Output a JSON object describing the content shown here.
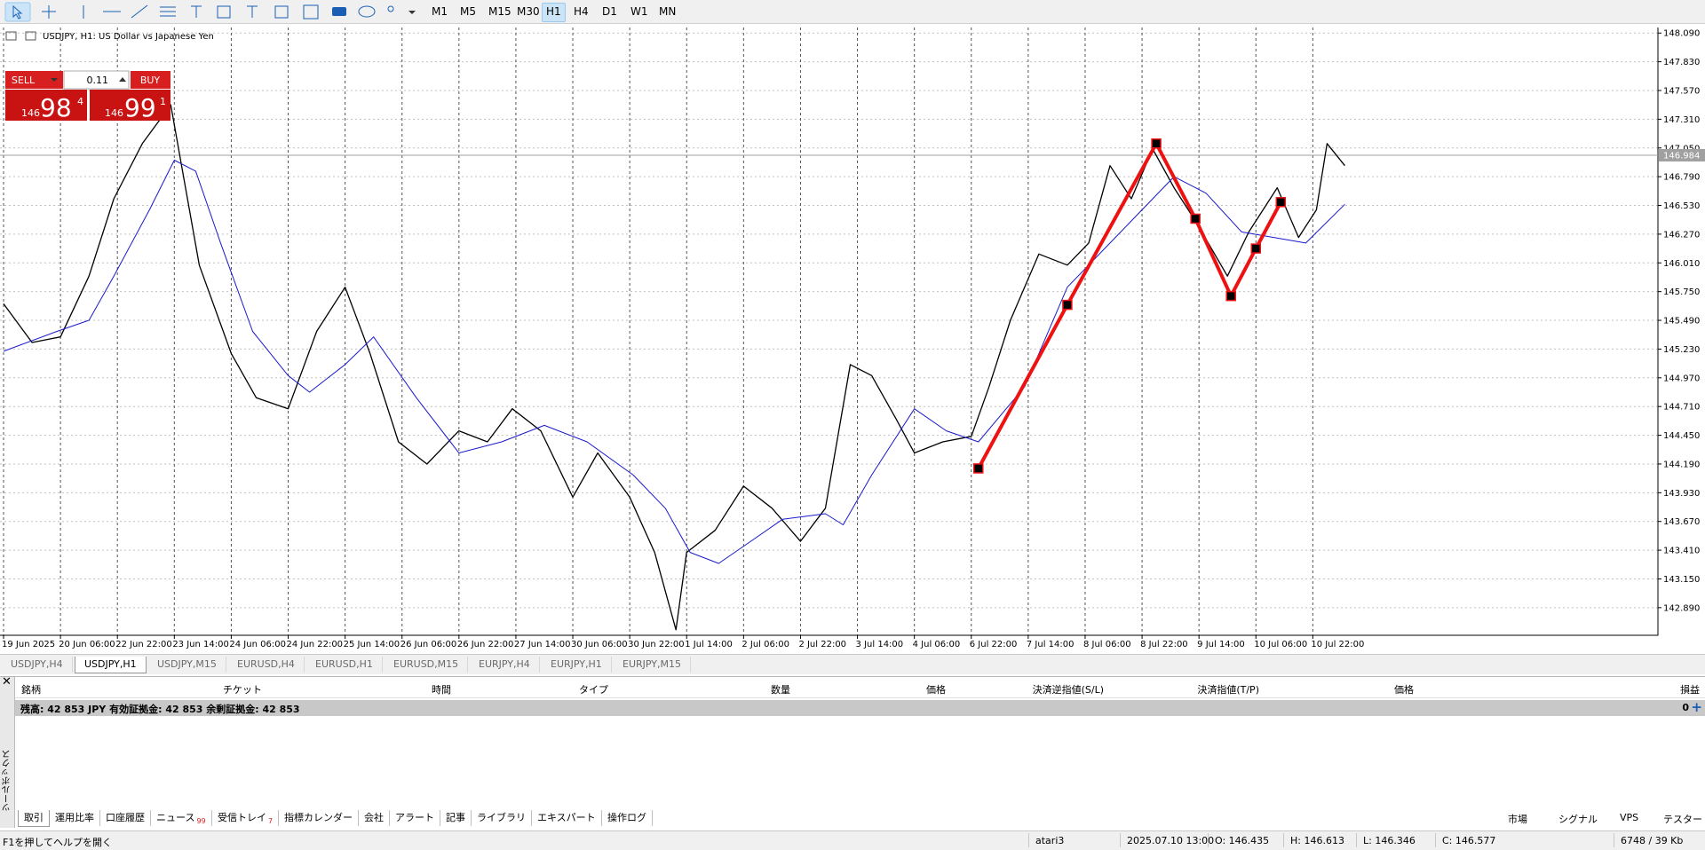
{
  "toolbar": {
    "periods": [
      "M1",
      "M5",
      "M15",
      "M30",
      "H1",
      "H4",
      "D1",
      "W1",
      "MN"
    ],
    "active_period": 4
  },
  "chart_header": "USDJPY, H1:  US Dollar vs Japanese Yen",
  "one_click": {
    "sell": "SELL",
    "buy": "BUY",
    "lot": "0.11",
    "bid": {
      "big": "146",
      "main": "98",
      "small": "4"
    },
    "ask": {
      "big": "146",
      "main": "99",
      "small": "1"
    }
  },
  "chart_data": {
    "type": "line",
    "grid": true,
    "xlim": [
      -1,
      465
    ],
    "xticks": [
      {
        "value": 0,
        "label": "19 Jun 2025"
      },
      {
        "value": 16,
        "label": "20 Jun 06:00"
      },
      {
        "value": 32,
        "label": "22 Jun 22:00"
      },
      {
        "value": 48,
        "label": "23 Jun 14:00"
      },
      {
        "value": 64,
        "label": "24 Jun 06:00"
      },
      {
        "value": 80,
        "label": "24 Jun 22:00"
      },
      {
        "value": 96,
        "label": "25 Jun 14:00"
      },
      {
        "value": 112,
        "label": "26 Jun 06:00"
      },
      {
        "value": 128,
        "label": "26 Jun 22:00"
      },
      {
        "value": 144,
        "label": "27 Jun 14:00"
      },
      {
        "value": 160,
        "label": "30 Jun 06:00"
      },
      {
        "value": 176,
        "label": "30 Jun 22:00"
      },
      {
        "value": 192,
        "label": "1 Jul 14:00"
      },
      {
        "value": 208,
        "label": "2 Jul 06:00"
      },
      {
        "value": 224,
        "label": "2 Jul 22:00"
      },
      {
        "value": 240,
        "label": "3 Jul 14:00"
      },
      {
        "value": 256,
        "label": "4 Jul 06:00"
      },
      {
        "value": 272,
        "label": "6 Jul 22:00"
      },
      {
        "value": 288,
        "label": "7 Jul 14:00"
      },
      {
        "value": 304,
        "label": "8 Jul 06:00"
      },
      {
        "value": 320,
        "label": "8 Jul 22:00"
      },
      {
        "value": 336,
        "label": "9 Jul 14:00"
      },
      {
        "value": 352,
        "label": "10 Jul 06:00"
      },
      {
        "value": 368,
        "label": "10 Jul 22:00"
      }
    ],
    "ylim": [
      142.64,
      148.14
    ],
    "yticks": [
      {
        "value": 148.09,
        "label": "148.090"
      },
      {
        "value": 147.83,
        "label": "147.830"
      },
      {
        "value": 147.57,
        "label": "147.570"
      },
      {
        "value": 147.31,
        "label": "147.310"
      },
      {
        "value": 147.05,
        "label": "147.050"
      },
      {
        "value": 146.79,
        "label": "146.790"
      },
      {
        "value": 146.53,
        "label": "146.530"
      },
      {
        "value": 146.27,
        "label": "146.270"
      },
      {
        "value": 146.01,
        "label": "146.010"
      },
      {
        "value": 145.75,
        "label": "145.750"
      },
      {
        "value": 145.49,
        "label": "145.490"
      },
      {
        "value": 145.23,
        "label": "145.230"
      },
      {
        "value": 144.97,
        "label": "144.970"
      },
      {
        "value": 144.71,
        "label": "144.710"
      },
      {
        "value": 144.45,
        "label": "144.450"
      },
      {
        "value": 144.19,
        "label": "144.190"
      },
      {
        "value": 143.93,
        "label": "143.930"
      },
      {
        "value": 143.67,
        "label": "143.670"
      },
      {
        "value": 143.41,
        "label": "143.410"
      },
      {
        "value": 143.15,
        "label": "143.150"
      },
      {
        "value": 142.89,
        "label": "142.890"
      }
    ],
    "current_price": {
      "value": 146.984,
      "label": "146.984"
    },
    "series": [
      {
        "color": "#000000",
        "width": 1.3,
        "x": [
          0,
          8,
          16,
          24,
          31,
          39,
          47,
          55,
          64,
          71,
          80,
          88,
          96,
          103,
          111,
          119,
          128,
          136,
          143,
          151,
          160,
          167,
          176,
          183,
          189,
          192,
          200,
          208,
          216,
          224,
          231,
          238,
          244,
          251,
          256,
          264,
          272,
          277,
          283,
          291,
          299,
          305,
          311,
          317,
          323,
          329,
          335,
          344,
          350,
          358,
          364,
          369,
          372,
          377
        ],
        "values": [
          145.64,
          145.29,
          145.34,
          145.89,
          146.59,
          147.09,
          147.44,
          145.99,
          145.19,
          144.79,
          144.69,
          145.39,
          145.79,
          145.19,
          144.39,
          144.19,
          144.49,
          144.39,
          144.69,
          144.49,
          143.89,
          144.29,
          143.89,
          143.39,
          142.69,
          143.39,
          143.59,
          143.99,
          143.79,
          143.49,
          143.79,
          145.09,
          144.99,
          144.59,
          144.29,
          144.39,
          144.44,
          144.89,
          145.49,
          146.09,
          145.99,
          146.19,
          146.89,
          146.59,
          147.04,
          146.69,
          146.39,
          145.89,
          146.29,
          146.69,
          146.24,
          146.49,
          147.09,
          146.89
        ]
      },
      {
        "color": "#1a1acc",
        "width": 1,
        "x": [
          0,
          15,
          24,
          31,
          41,
          48,
          54,
          61,
          70,
          80,
          86,
          96,
          104,
          116,
          128,
          140,
          152,
          164,
          177,
          186,
          193,
          201,
          210,
          219,
          231,
          236,
          244,
          256,
          265,
          274,
          287,
          299,
          311,
          323,
          329,
          338,
          348,
          357,
          366,
          377
        ],
        "values": [
          145.21,
          145.39,
          145.49,
          145.89,
          146.49,
          146.94,
          146.84,
          146.19,
          145.39,
          144.99,
          144.84,
          145.09,
          145.34,
          144.79,
          144.29,
          144.39,
          144.54,
          144.39,
          144.09,
          143.79,
          143.39,
          143.29,
          143.49,
          143.69,
          143.74,
          143.64,
          144.09,
          144.69,
          144.49,
          144.39,
          144.89,
          145.79,
          146.19,
          146.59,
          146.79,
          146.64,
          146.29,
          146.24,
          146.19,
          146.54
        ]
      },
      {
        "color": "#ee1111",
        "width": 4,
        "markers": true,
        "x": [
          274,
          299,
          324,
          335,
          345,
          352,
          359
        ],
        "values": [
          144.15,
          145.63,
          147.09,
          146.41,
          145.71,
          146.14,
          146.56
        ]
      }
    ]
  },
  "chart_tabs": {
    "tabs": [
      "USDJPY,H4",
      "USDJPY,H1",
      "USDJPY,M15",
      "EURUSD,H4",
      "EURUSD,H1",
      "EURUSD,M15",
      "EURJPY,H4",
      "EURJPY,H1",
      "EURJPY,M15"
    ],
    "active": 1
  },
  "terminal": {
    "vertical_label": "ツールボックス",
    "columns": [
      "銘柄",
      "チケット",
      "時間",
      "タイプ",
      "数量",
      "価格",
      "決済逆指値(S/L)",
      "決済指値(T/P)",
      "価格",
      "損益"
    ],
    "balance": "残高: 42 853 JPY  有効証拠金: 42 853  余剰証拠金: 42 853",
    "profit": "0",
    "tabs": [
      {
        "label": "取引"
      },
      {
        "label": "運用比率"
      },
      {
        "label": "口座履歴"
      },
      {
        "label": "ニュース",
        "badge": "99"
      },
      {
        "label": "受信トレイ",
        "badge": "7"
      },
      {
        "label": "指標カレンダー"
      },
      {
        "label": "会社"
      },
      {
        "label": "アラート"
      },
      {
        "label": "記事"
      },
      {
        "label": "ライブラリ"
      },
      {
        "label": "エキスパート"
      },
      {
        "label": "操作ログ"
      }
    ],
    "active_tab": 0,
    "side_tabs": [
      "市場",
      "シグナル",
      "VPS",
      "テスター"
    ]
  },
  "status_bar": [
    "F1を押してヘルプを開く",
    "atari3",
    "2025.07.10 13:00",
    "O: 146.435",
    "H: 146.613",
    "L: 146.346",
    "C: 146.577",
    "6748 / 39 Kb"
  ]
}
